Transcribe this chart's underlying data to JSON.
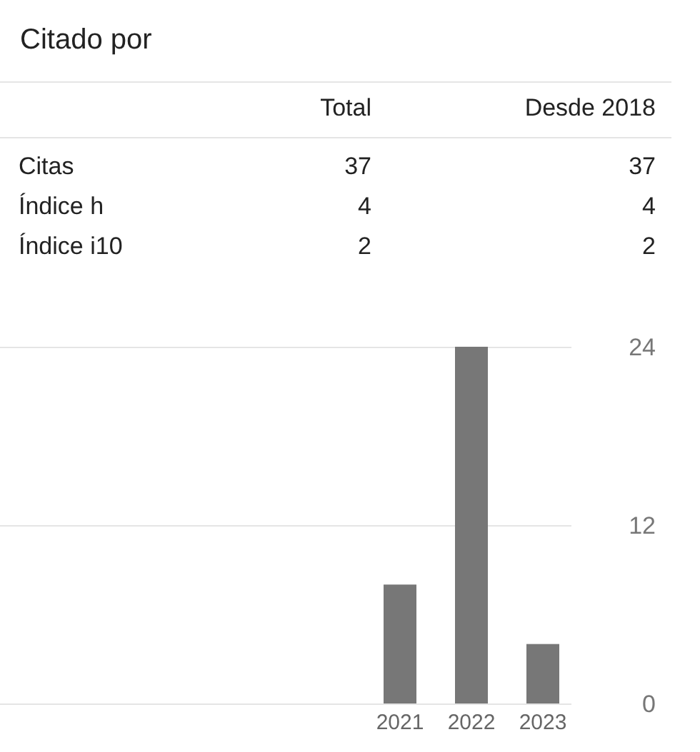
{
  "chart_data": [
    {
      "type": "other",
      "title": "Citado por",
      "categories": [
        "Citas",
        "Índice h",
        "Índice i10"
      ],
      "series": [
        {
          "name": "Total",
          "values": [
            37,
            4,
            2
          ]
        },
        {
          "name": "Desde 2018",
          "values": [
            37,
            4,
            2
          ]
        }
      ],
      "data_labels": true
    },
    {
      "type": "bar",
      "categories": [
        "2021",
        "2022",
        "2023"
      ],
      "values": [
        8,
        24,
        4
      ],
      "color": "#777777",
      "ylim": [
        0,
        24
      ],
      "yticks": [
        0,
        12,
        24
      ],
      "grid": "y"
    }
  ]
}
